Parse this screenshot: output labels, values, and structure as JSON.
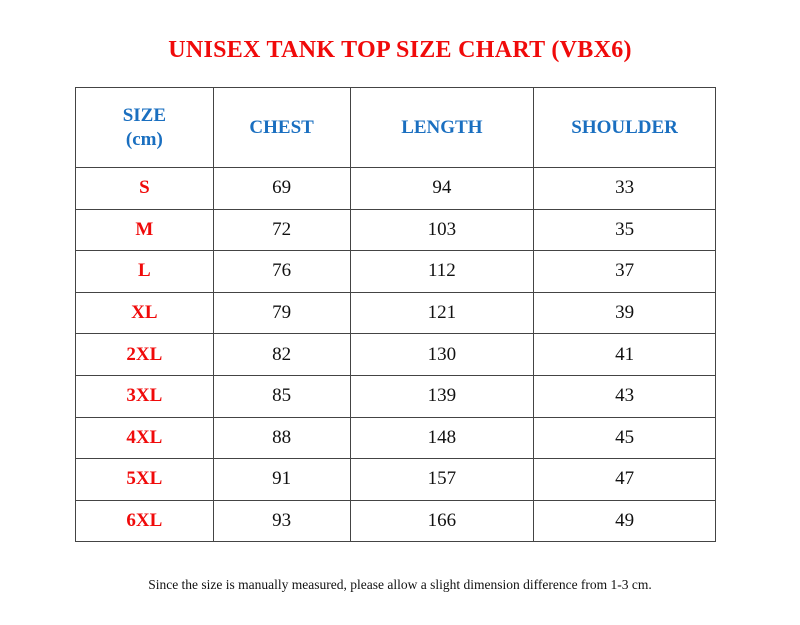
{
  "title": "UNISEX TANK TOP SIZE CHART (VBX6)",
  "table": {
    "headers": [
      "SIZE",
      "(cm)",
      "CHEST",
      "LENGTH",
      "SHOULDER"
    ],
    "rows": [
      [
        "S",
        "69",
        "94",
        "33"
      ],
      [
        "M",
        "72",
        "103",
        "35"
      ],
      [
        "L",
        "76",
        "112",
        "37"
      ],
      [
        "XL",
        "79",
        "121",
        "39"
      ],
      [
        "2XL",
        "82",
        "130",
        "41"
      ],
      [
        "3XL",
        "85",
        "139",
        "43"
      ],
      [
        "4XL",
        "88",
        "148",
        "45"
      ],
      [
        "5XL",
        "91",
        "157",
        "47"
      ],
      [
        "6XL",
        "93",
        "166",
        "49"
      ]
    ]
  },
  "note": "Since the size is manually measured, please allow a slight dimension difference from 1-3 cm.",
  "colors": {
    "title": "#f00a0a",
    "header": "#1a6fc0",
    "size_label": "#f00a0a"
  }
}
